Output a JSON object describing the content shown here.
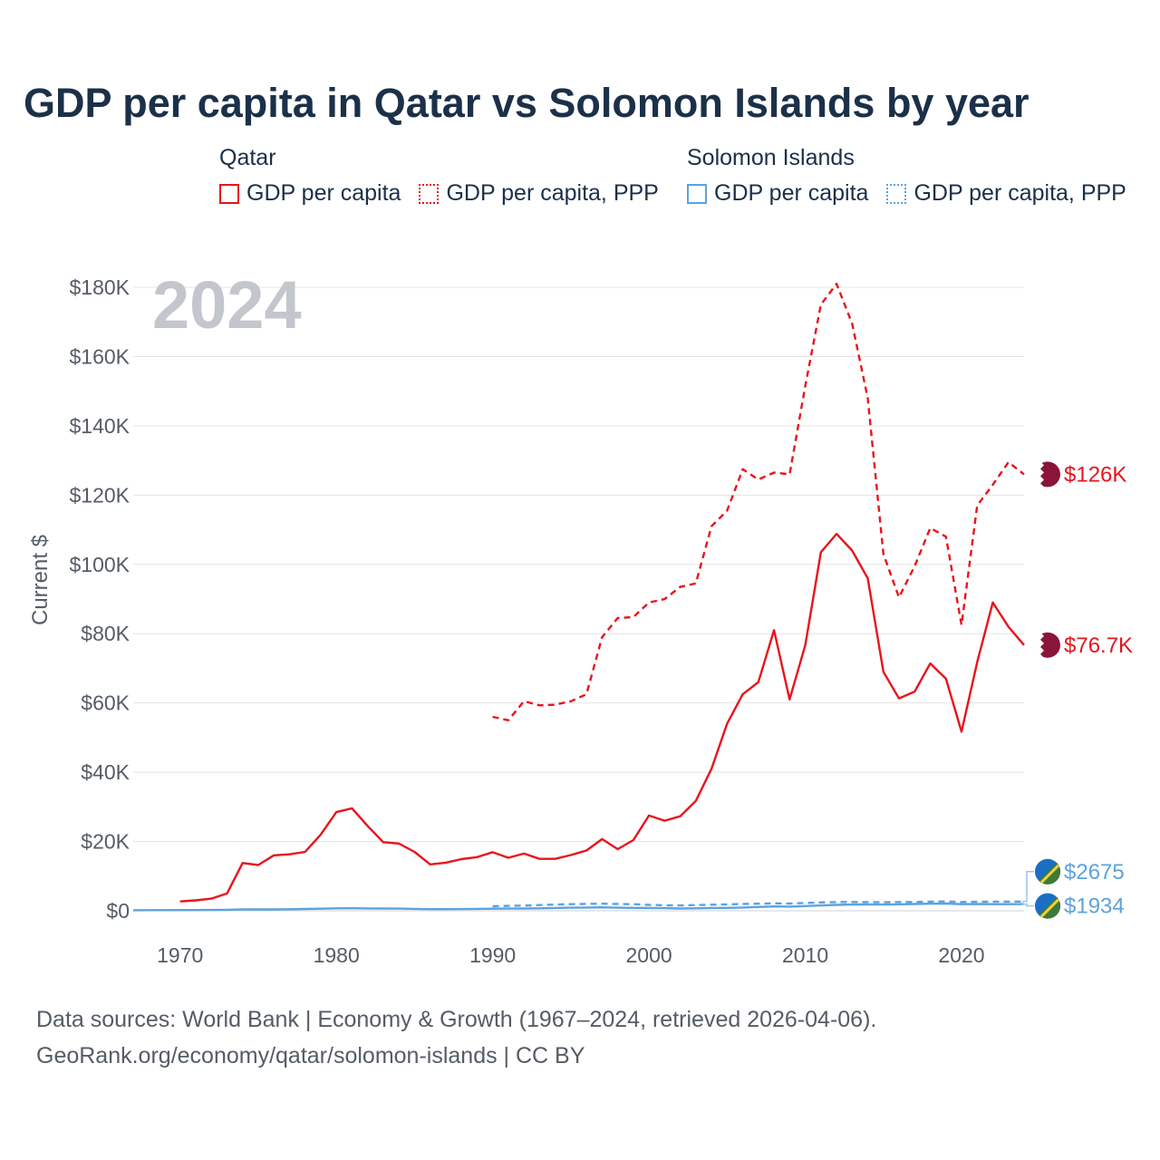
{
  "title": "GDP per capita in Qatar vs Solomon Islands by year",
  "legend": {
    "groups": [
      {
        "name": "Qatar",
        "items": [
          "GDP per capita",
          "GDP per capita, PPP"
        ]
      },
      {
        "name": "Solomon Islands",
        "items": [
          "GDP per capita",
          "GDP per capita, PPP"
        ]
      }
    ]
  },
  "year_label": "2024",
  "source": {
    "line1": "Data sources: World Bank | Economy & Growth (1967–2024, retrieved 2026-04-06).",
    "line2": "GeoRank.org/economy/qatar/solomon-islands | CC BY"
  },
  "colors": {
    "qatar": "#e8141b",
    "solomon": "#5ba3e0",
    "grid": "#e2e2e2",
    "axis_text": "#555c66"
  },
  "chart_data": {
    "type": "line",
    "title": "GDP per capita in Qatar vs Solomon Islands by year",
    "xlabel": "",
    "ylabel": "Current $",
    "xlim": [
      1967,
      2024
    ],
    "ylim": [
      0,
      180000
    ],
    "x_ticks": [
      1970,
      1980,
      1990,
      2000,
      2010,
      2020
    ],
    "y_ticks": [
      {
        "value": 0,
        "label": "$0"
      },
      {
        "value": 20000,
        "label": "$20K"
      },
      {
        "value": 40000,
        "label": "$40K"
      },
      {
        "value": 60000,
        "label": "$60K"
      },
      {
        "value": 80000,
        "label": "$80K"
      },
      {
        "value": 100000,
        "label": "$100K"
      },
      {
        "value": 120000,
        "label": "$120K"
      },
      {
        "value": 140000,
        "label": "$140K"
      },
      {
        "value": 160000,
        "label": "$160K"
      },
      {
        "value": 180000,
        "label": "$180K"
      }
    ],
    "series": [
      {
        "name": "Qatar GDP per capita",
        "country": "Qatar",
        "style": "solid",
        "color": "#e8141b",
        "end_label": "$76.7K",
        "x": [
          1970,
          1971,
          1972,
          1973,
          1974,
          1975,
          1976,
          1977,
          1978,
          1979,
          1980,
          1981,
          1982,
          1983,
          1984,
          1985,
          1986,
          1987,
          1988,
          1989,
          1990,
          1991,
          1992,
          1993,
          1994,
          1995,
          1996,
          1997,
          1998,
          1999,
          2000,
          2001,
          2002,
          2003,
          2004,
          2005,
          2006,
          2007,
          2008,
          2009,
          2010,
          2011,
          2012,
          2013,
          2014,
          2015,
          2016,
          2017,
          2018,
          2019,
          2020,
          2021,
          2022,
          2023,
          2024
        ],
        "values": [
          2700,
          3000,
          3500,
          5000,
          13800,
          13200,
          16000,
          16300,
          17000,
          22000,
          28500,
          29600,
          24500,
          19800,
          19400,
          17000,
          13400,
          13900,
          14900,
          15500,
          16900,
          15300,
          16500,
          15000,
          15000,
          16100,
          17400,
          20700,
          17800,
          20400,
          27500,
          26000,
          27300,
          31700,
          41000,
          54000,
          62500,
          66000,
          81000,
          61000,
          76700,
          103500,
          108800,
          104000,
          96000,
          69000,
          61300,
          63300,
          71400,
          67000,
          51700,
          71800,
          89000,
          82000,
          76700
        ]
      },
      {
        "name": "Qatar GDP per capita, PPP",
        "country": "Qatar",
        "style": "dashed",
        "color": "#e8141b",
        "end_label": "$126K",
        "x": [
          1990,
          1991,
          1992,
          1993,
          1994,
          1995,
          1996,
          1997,
          1998,
          1999,
          2000,
          2001,
          2002,
          2003,
          2004,
          2005,
          2006,
          2007,
          2008,
          2009,
          2010,
          2011,
          2012,
          2013,
          2014,
          2015,
          2016,
          2017,
          2018,
          2019,
          2020,
          2021,
          2022,
          2023,
          2024
        ],
        "values": [
          56000,
          55000,
          60500,
          59300,
          59500,
          60500,
          62500,
          79000,
          84500,
          84800,
          89000,
          90000,
          93500,
          94500,
          111000,
          115500,
          127500,
          124500,
          126500,
          126000,
          151500,
          175000,
          181000,
          169500,
          148000,
          103000,
          90500,
          99500,
          110500,
          108000,
          82500,
          117000,
          123000,
          129500,
          126000
        ]
      },
      {
        "name": "Solomon Islands GDP per capita",
        "country": "Solomon Islands",
        "style": "solid",
        "color": "#5ba3e0",
        "end_label": "$1934",
        "x": [
          1967,
          1968,
          1969,
          1970,
          1971,
          1972,
          1973,
          1974,
          1975,
          1976,
          1977,
          1978,
          1979,
          1980,
          1981,
          1982,
          1983,
          1984,
          1985,
          1986,
          1987,
          1988,
          1989,
          1990,
          1991,
          1992,
          1993,
          1994,
          1995,
          1996,
          1997,
          1998,
          1999,
          2000,
          2001,
          2002,
          2003,
          2004,
          2005,
          2006,
          2007,
          2008,
          2009,
          2010,
          2011,
          2012,
          2013,
          2014,
          2015,
          2016,
          2017,
          2018,
          2019,
          2020,
          2021,
          2022,
          2023,
          2024
        ],
        "values": [
          170,
          180,
          190,
          200,
          220,
          240,
          300,
          400,
          380,
          400,
          450,
          520,
          600,
          700,
          720,
          690,
          650,
          620,
          560,
          480,
          470,
          500,
          560,
          600,
          620,
          650,
          700,
          800,
          900,
          950,
          1000,
          900,
          850,
          800,
          750,
          650,
          700,
          800,
          850,
          950,
          1100,
          1250,
          1200,
          1350,
          1550,
          1700,
          1800,
          1850,
          1800,
          1850,
          1950,
          2050,
          2100,
          1900,
          1950,
          1900,
          1920,
          1934
        ]
      },
      {
        "name": "Solomon Islands GDP per capita, PPP",
        "country": "Solomon Islands",
        "style": "dashed",
        "color": "#5ba3e0",
        "end_label": "$2675",
        "x": [
          1990,
          1991,
          1992,
          1993,
          1994,
          1995,
          1996,
          1997,
          1998,
          1999,
          2000,
          2001,
          2002,
          2003,
          2004,
          2005,
          2006,
          2007,
          2008,
          2009,
          2010,
          2011,
          2012,
          2013,
          2014,
          2015,
          2016,
          2017,
          2018,
          2019,
          2020,
          2021,
          2022,
          2023,
          2024
        ],
        "values": [
          1300,
          1400,
          1500,
          1650,
          1800,
          1900,
          2000,
          2050,
          1950,
          1900,
          1700,
          1600,
          1550,
          1650,
          1750,
          1850,
          1950,
          2050,
          2150,
          2100,
          2250,
          2400,
          2500,
          2550,
          2500,
          2450,
          2500,
          2550,
          2650,
          2700,
          2550,
          2600,
          2650,
          2650,
          2675
        ]
      }
    ]
  }
}
